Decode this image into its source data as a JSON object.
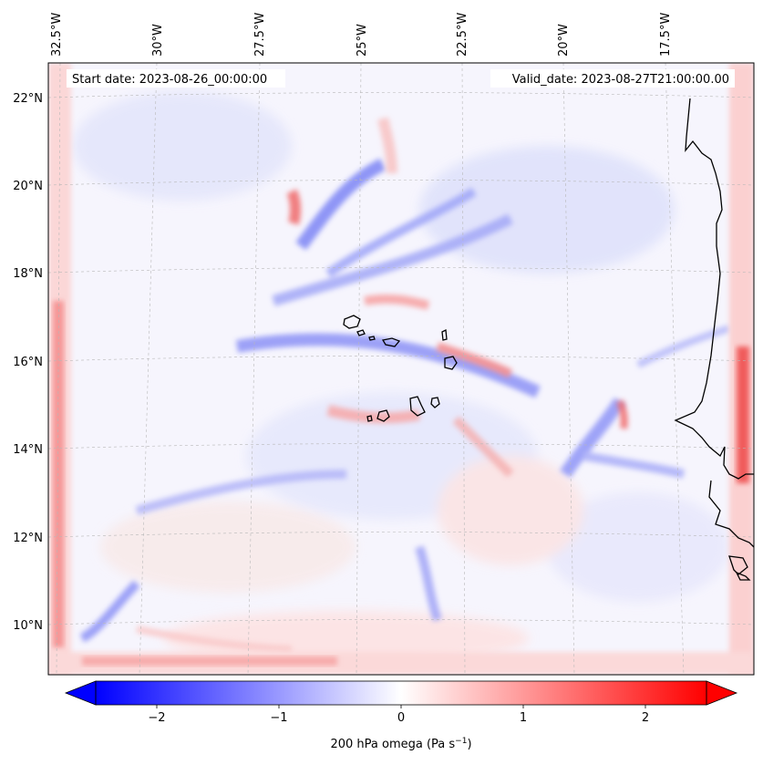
{
  "header": {
    "start_date": "Start date: 2023-08-26_00:00:00",
    "valid_date": "Valid_date: 2023-08-27T21:00:00.00"
  },
  "map": {
    "lon_ticks": [
      "32.5°W",
      "30°W",
      "27.5°W",
      "25°W",
      "22.5°W",
      "20°W",
      "17.5°W"
    ],
    "lat_ticks": [
      "22°N",
      "20°N",
      "18°N",
      "16°N",
      "14°N",
      "12°N",
      "10°N"
    ],
    "field": "200 hPa omega",
    "colors": {
      "negative": "#0000ff",
      "zero": "#ffffff",
      "positive": "#ff0000",
      "coast": "#000000",
      "grid": "#b0b0b0"
    }
  },
  "colorbar": {
    "ticks": [
      "−2",
      "−1",
      "0",
      "1",
      "2"
    ],
    "tick_values": [
      -2,
      -1,
      0,
      1,
      2
    ],
    "range": [
      -2.5,
      2.5
    ],
    "label_main": "200 hPa omega (Pa s",
    "label_sup": "−1",
    "label_end": ")",
    "extend": "both"
  }
}
